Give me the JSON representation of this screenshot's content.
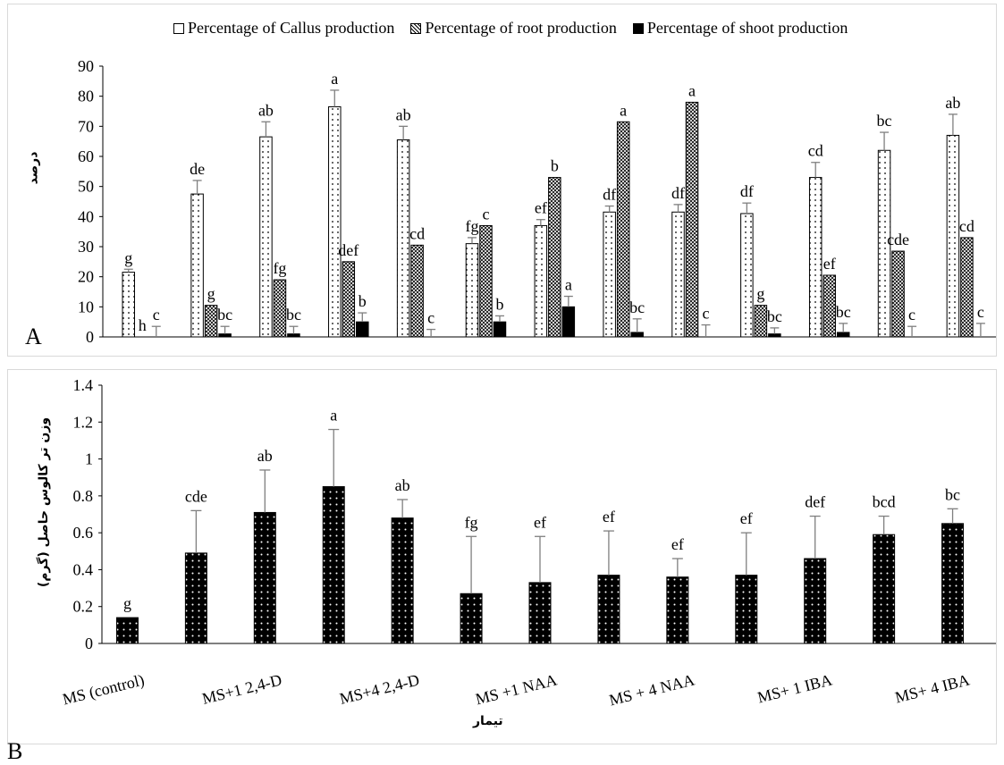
{
  "panels": {
    "a_label": "A",
    "b_label": "B"
  },
  "colors": {
    "axis": "#000000",
    "bar_outline": "#000000",
    "error_bar": "#7f7f7f",
    "dots": "#000000",
    "callus_fill": "#ffffff",
    "root_fill": "#ffffff",
    "shoot_fill": "#000000",
    "weight_fill": "#000000",
    "weight_dots": "#ffffff"
  },
  "chart_data": [
    {
      "type": "bar",
      "title": "",
      "xlabel": "",
      "ylabel": "درصد",
      "ylim": [
        0,
        90
      ],
      "yticks": [
        "0",
        "10",
        "20",
        "30",
        "40",
        "50",
        "60",
        "70",
        "80",
        "90"
      ],
      "groups": 13,
      "legend_position": "top",
      "series": [
        {
          "name": "Percentage of Callus production",
          "pattern": "dotted-white",
          "values": [
            21.5,
            47.5,
            66.5,
            76.5,
            65.5,
            31,
            37,
            41.5,
            41.5,
            41,
            53,
            62,
            67
          ],
          "errors": [
            1,
            4.5,
            5,
            5.5,
            4.5,
            2,
            2,
            2,
            2.5,
            3.5,
            5,
            6,
            7
          ],
          "letters": [
            "g",
            "de",
            "ab",
            "a",
            "ab",
            "fg",
            "ef",
            "df",
            "df",
            "df",
            "cd",
            "bc",
            "ab"
          ]
        },
        {
          "name": "Percentage of  root production",
          "pattern": "crosshatch",
          "values": [
            0,
            10.5,
            19,
            25,
            30.5,
            37,
            53,
            71.5,
            78,
            10.5,
            20.5,
            28.5,
            33
          ],
          "errors": [
            0,
            0,
            0,
            0,
            0,
            0,
            0,
            0,
            0,
            0,
            0,
            0,
            0
          ],
          "letters": [
            "h",
            "g",
            "fg",
            "def",
            "cd",
            "c",
            "b",
            "a",
            "a",
            "g",
            "ef",
            "cde",
            "cd"
          ]
        },
        {
          "name": "Percentage of shoot production",
          "pattern": "solid-black",
          "values": [
            0,
            1,
            1,
            5,
            0,
            5,
            10,
            1.5,
            0,
            1,
            1.5,
            0,
            0
          ],
          "errors": [
            3.5,
            2.5,
            2.5,
            3,
            2.5,
            2,
            3.5,
            4.5,
            4,
            2,
            3,
            3.5,
            4.5
          ],
          "letters": [
            "c",
            "bc",
            "bc",
            "b",
            "c",
            "b",
            "a",
            "bc",
            "c",
            "bc",
            "bc",
            "c",
            "c"
          ]
        }
      ]
    },
    {
      "type": "bar",
      "title": "",
      "xlabel": "تیمار",
      "ylabel": "وزن تر کالوس حاصل (گرم)",
      "ylim": [
        0,
        1.4
      ],
      "yticks": [
        "0",
        "0.2",
        "0.4",
        "0.6",
        "0.8",
        "1",
        "1.2",
        "1.4"
      ],
      "category_labels": [
        "MS (control)",
        "MS+1 2,4-D",
        "MS+4 2,4-D",
        "MS +1 NAA",
        "MS + 4 NAA",
        "MS+ 1 IBA",
        "MS+ 4 IBA"
      ],
      "label_every": 2,
      "series": [
        {
          "name": "",
          "values": [
            0.14,
            0.49,
            0.71,
            0.85,
            0.68,
            0.27,
            0.33,
            0.37,
            0.36,
            0.37,
            0.46,
            0.59,
            0.65
          ],
          "errors": [
            0,
            0.23,
            0.23,
            0.31,
            0.1,
            0.31,
            0.25,
            0.24,
            0.1,
            0.23,
            0.23,
            0.1,
            0.08
          ],
          "letters": [
            "g",
            "cde",
            "ab",
            "a",
            "ab",
            "fg",
            "ef",
            "ef",
            "ef",
            "ef",
            "def",
            "bcd",
            "bc"
          ]
        }
      ]
    }
  ]
}
